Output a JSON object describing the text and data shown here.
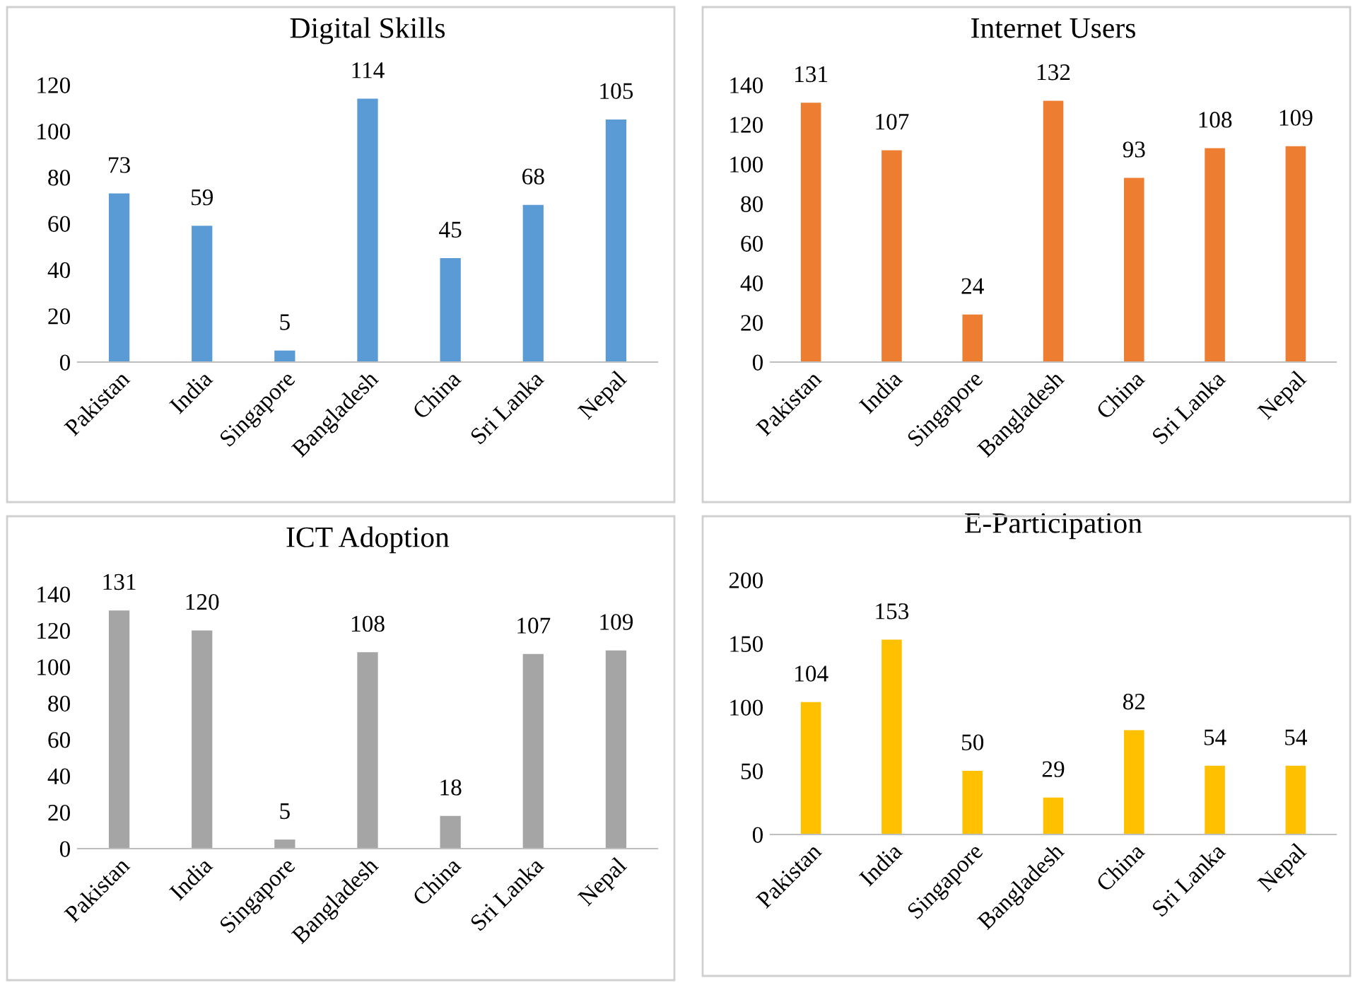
{
  "chart_data": [
    {
      "type": "bar",
      "title": "Digital Skills",
      "categories": [
        "Pakistan",
        "India",
        "Singapore",
        "Bangladesh",
        "China",
        "Sri Lanka",
        "Nepal"
      ],
      "values": [
        73,
        59,
        5,
        114,
        45,
        68,
        105
      ],
      "color": "#5b9bd5",
      "ylim": [
        0,
        120
      ],
      "yticks": [
        0,
        20,
        40,
        60,
        80,
        100,
        120
      ],
      "data_labels": true,
      "grid": false,
      "legend": false
    },
    {
      "type": "bar",
      "title": "Internet Users",
      "categories": [
        "Pakistan",
        "India",
        "Singapore",
        "Bangladesh",
        "China",
        "Sri Lanka",
        "Nepal"
      ],
      "values": [
        131,
        107,
        24,
        132,
        93,
        108,
        109
      ],
      "color": "#ed7d31",
      "ylim": [
        0,
        140
      ],
      "yticks": [
        0,
        20,
        40,
        60,
        80,
        100,
        120,
        140
      ],
      "data_labels": true,
      "grid": false,
      "legend": false
    },
    {
      "type": "bar",
      "title": "ICT Adoption",
      "categories": [
        "Pakistan",
        "India",
        "Singapore",
        "Bangladesh",
        "China",
        "Sri Lanka",
        "Nepal"
      ],
      "values": [
        131,
        120,
        5,
        108,
        18,
        107,
        109
      ],
      "color": "#a5a5a5",
      "ylim": [
        0,
        140
      ],
      "yticks": [
        0,
        20,
        40,
        60,
        80,
        100,
        120,
        140
      ],
      "data_labels": true,
      "grid": false,
      "legend": false
    },
    {
      "type": "bar",
      "title": "E-Participation",
      "categories": [
        "Pakistan",
        "India",
        "Singapore",
        "Bangladesh",
        "China",
        "Sri Lanka",
        "Nepal"
      ],
      "values": [
        104,
        153,
        50,
        29,
        82,
        54,
        54
      ],
      "color": "#ffc000",
      "ylim": [
        0,
        200
      ],
      "yticks": [
        0,
        50,
        100,
        150,
        200
      ],
      "data_labels": true,
      "grid": false,
      "legend": false
    }
  ]
}
